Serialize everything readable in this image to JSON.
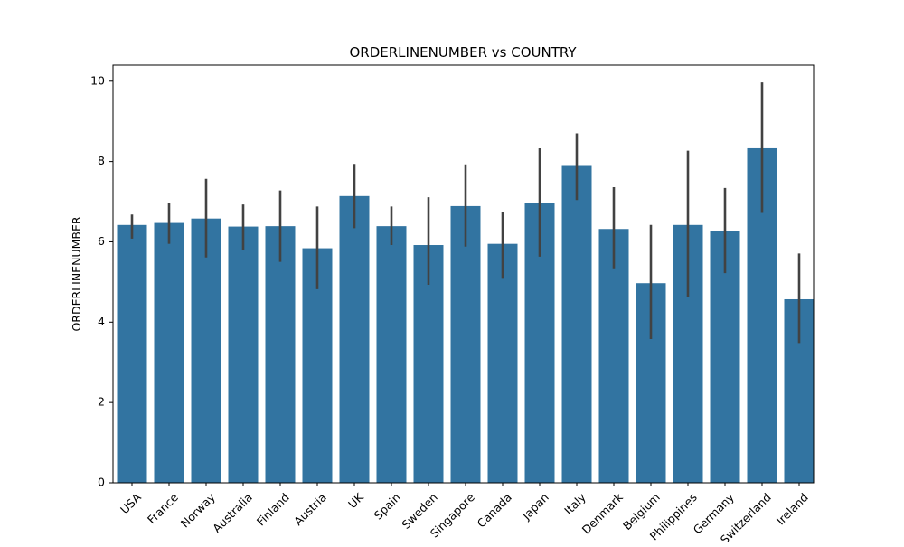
{
  "chart_data": {
    "type": "bar",
    "title": "ORDERLINENUMBER vs COUNTRY",
    "xlabel": "",
    "ylabel": "ORDERLINENUMBER",
    "ylim": [
      0,
      10.4
    ],
    "yticks": [
      0,
      2,
      4,
      6,
      8,
      10
    ],
    "grid": false,
    "legend": "none",
    "bar_color": "#3274a1",
    "errorbar_color": "#424242",
    "categories": [
      "USA",
      "France",
      "Norway",
      "Australia",
      "Finland",
      "Austria",
      "UK",
      "Spain",
      "Sweden",
      "Singapore",
      "Canada",
      "Japan",
      "Italy",
      "Denmark",
      "Belgium",
      "Philippines",
      "Germany",
      "Switzerland",
      "Ireland"
    ],
    "values": [
      6.42,
      6.47,
      6.58,
      6.38,
      6.39,
      5.84,
      7.14,
      6.39,
      5.92,
      6.89,
      5.95,
      6.96,
      7.89,
      6.32,
      4.97,
      6.42,
      6.27,
      8.33,
      4.57
    ],
    "error_low": [
      6.08,
      5.95,
      5.61,
      5.8,
      5.5,
      4.82,
      6.34,
      5.92,
      4.93,
      5.88,
      5.08,
      5.63,
      7.04,
      5.34,
      3.58,
      4.62,
      5.22,
      6.72,
      3.48
    ],
    "error_high": [
      6.68,
      6.97,
      7.57,
      6.93,
      7.28,
      6.88,
      7.94,
      6.88,
      7.11,
      7.93,
      6.75,
      8.33,
      8.7,
      7.36,
      6.42,
      8.27,
      7.34,
      9.97,
      5.71
    ]
  }
}
